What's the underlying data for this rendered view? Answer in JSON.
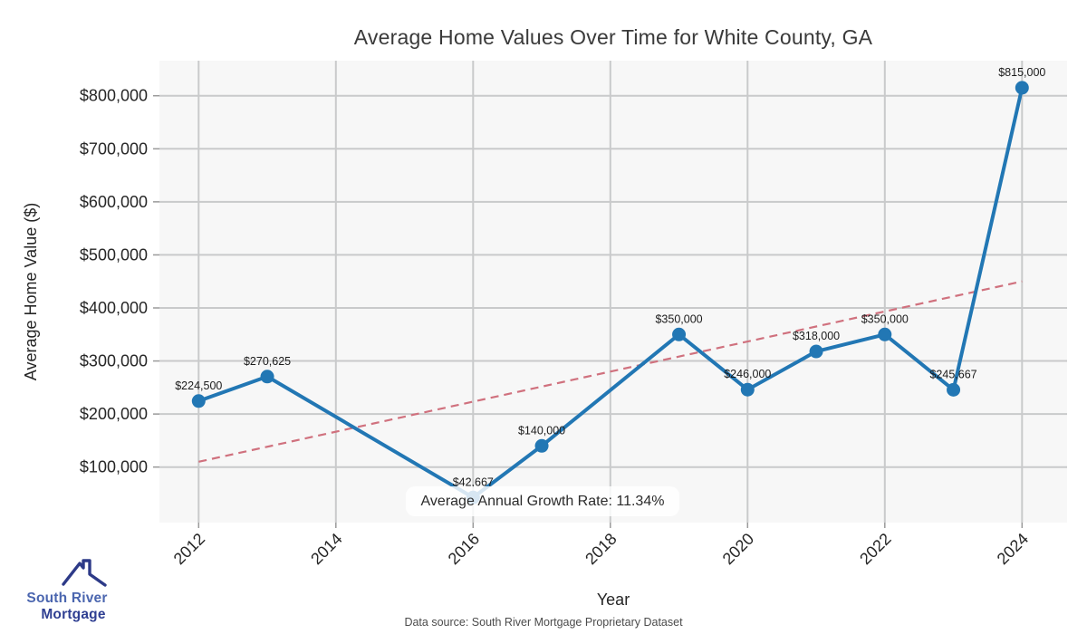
{
  "title": "Average Home Values Over Time for White County, GA",
  "annotation": {
    "text": "Average Annual Growth Rate: 11.34%"
  },
  "footer": {
    "data_source": "Data source: South River Mortgage Proprietary Dataset"
  },
  "logo": {
    "line1": "South River",
    "line2": "Mortgage",
    "icon": "house-roof-icon",
    "color_line1": "#4b66af",
    "color_line2": "#2f3f92",
    "color_roof": "#2d3a88"
  },
  "colors": {
    "line": "#2277b4",
    "marker": "#2277b4",
    "trend": "#d0717e",
    "plot_bg": "#f7f7f7",
    "grid": "#c9cacb",
    "tick_text": "#262626",
    "point_label_text": "#1b1b1b",
    "title_text": "#3a3a3a"
  },
  "chart_data": {
    "type": "line",
    "title": "Average Home Values Over Time for White County, GA",
    "xlabel": "Year",
    "ylabel": "Average Home Value ($)",
    "x": [
      2012,
      2013,
      2016,
      2017,
      2019,
      2020,
      2021,
      2022,
      2023,
      2024
    ],
    "values": [
      224500,
      270625,
      42667,
      140000,
      350000,
      246000,
      318000,
      350000,
      245667,
      815000
    ],
    "point_labels": [
      "$224,500",
      "$270,625",
      "$42,667",
      "$140,000",
      "$350,000",
      "$246,000",
      "$318,000",
      "$350,000",
      "$245,667",
      "$815,000"
    ],
    "xticks": [
      2012,
      2014,
      2016,
      2018,
      2020,
      2022,
      2024
    ],
    "xtick_labels": [
      "2012",
      "2014",
      "2016",
      "2018",
      "2020",
      "2022",
      "2024"
    ],
    "yticks": [
      100000,
      200000,
      300000,
      400000,
      500000,
      600000,
      700000,
      800000
    ],
    "ytick_labels": [
      "$100,000",
      "$200,000",
      "$300,000",
      "$400,000",
      "$500,000",
      "$600,000",
      "$700,000",
      "$800,000"
    ],
    "xlim": [
      2011.4,
      2024.7
    ],
    "ylim": [
      0,
      865000
    ],
    "grid": true,
    "legend": "none",
    "trend_line": {
      "style": "dashed",
      "x": [
        2012,
        2024
      ],
      "values": [
        110000,
        450000
      ]
    },
    "annotation": "Average Annual Growth Rate: 11.34%"
  }
}
